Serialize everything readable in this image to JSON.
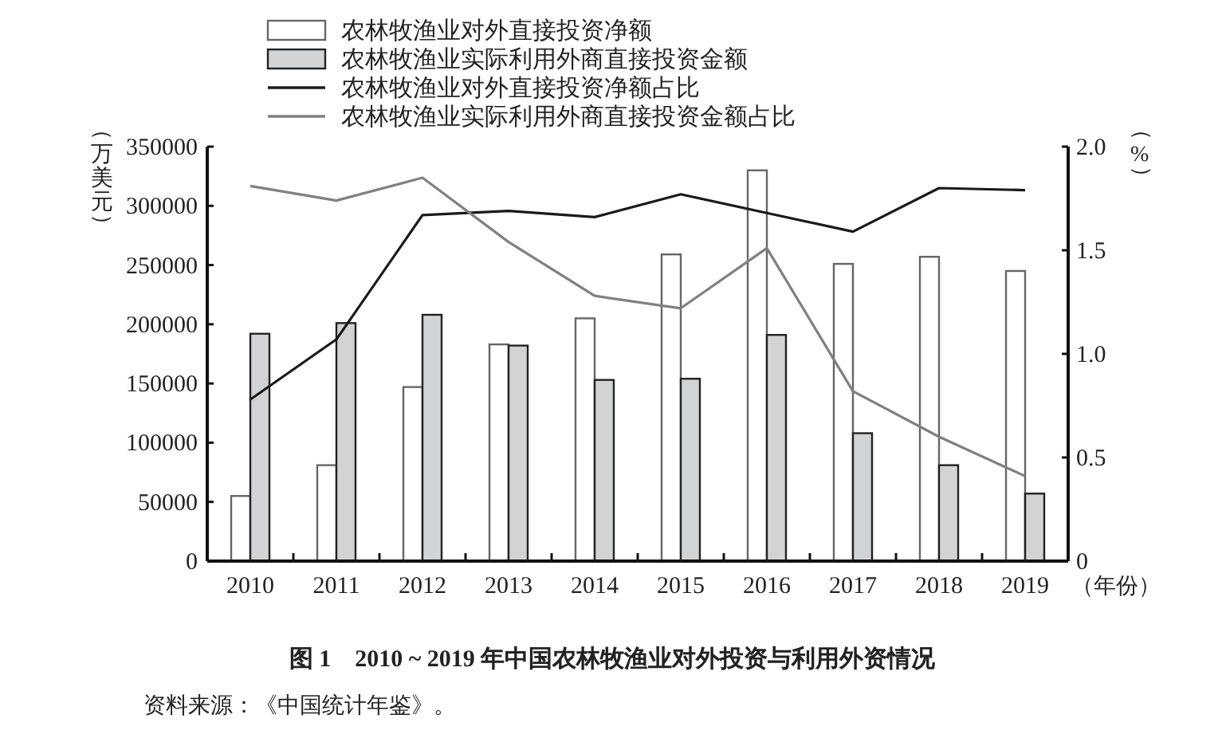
{
  "chart_data": {
    "type": "bar",
    "title": "图 1　2010 ~ 2019 年中国农林牧渔业对外投资与利用外资情况",
    "annotations": [
      "资料来源：《中国统计年鉴》。"
    ],
    "xlabel": "（年份）",
    "ylabel": "（万美元）",
    "y2label": "（%）",
    "categories": [
      "2010",
      "2011",
      "2012",
      "2013",
      "2014",
      "2015",
      "2016",
      "2017",
      "2018",
      "2019"
    ],
    "series": [
      {
        "name": "农林牧渔业对外直接投资净额",
        "color": "#ffffff",
        "values": [
          55000,
          81000,
          147000,
          183000,
          205000,
          259000,
          330000,
          251000,
          257000,
          245000
        ]
      },
      {
        "name": "农林牧渔业实际利用外商直接投资金额",
        "color": "#d2d3d5",
        "values": [
          192000,
          201000,
          208000,
          182000,
          153000,
          154000,
          191000,
          108000,
          81000,
          57000
        ]
      },
      {
        "name": "农林牧渔业对外直接投资净额占比",
        "type": "line",
        "axis": "y2",
        "color": "#1a1a1a",
        "values": [
          0.78,
          1.07,
          1.67,
          1.69,
          1.66,
          1.77,
          1.68,
          1.59,
          1.8,
          1.79
        ]
      },
      {
        "name": "农林牧渔业实际利用外商直接投资金额占比",
        "type": "line",
        "axis": "y2",
        "color": "#808080",
        "values": [
          1.81,
          1.74,
          1.85,
          1.54,
          1.28,
          1.22,
          1.51,
          0.82,
          0.6,
          0.41
        ]
      }
    ],
    "ylim": [
      0,
      350000
    ],
    "yticks": [
      0,
      50000,
      100000,
      150000,
      200000,
      250000,
      300000,
      350000
    ],
    "y2lim": [
      0,
      2
    ],
    "y2ticks": [
      0,
      0.5,
      {
        "value": 1,
        "label": "1.0"
      },
      1.5,
      {
        "value": 2,
        "label": "2.0"
      }
    ],
    "legend": "top",
    "grid": false
  }
}
